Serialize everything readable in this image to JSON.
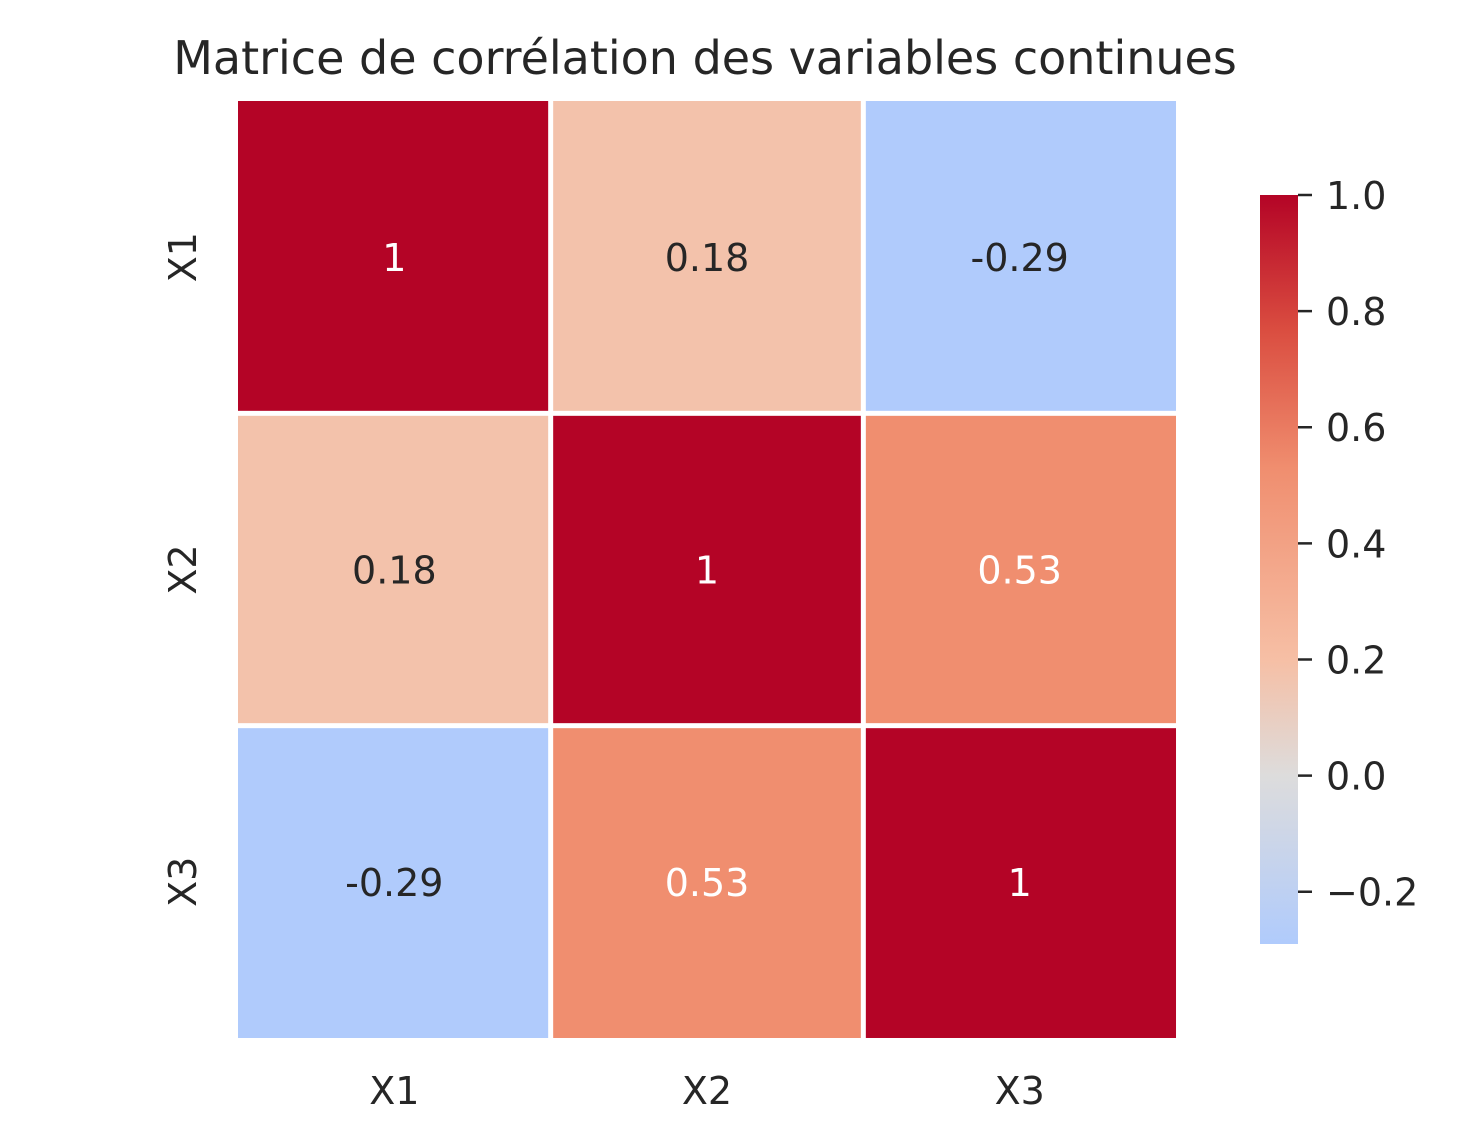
{
  "chart_data": {
    "type": "heatmap",
    "title": "Matrice de corrélation des variables continues",
    "xlabel": "",
    "ylabel": "",
    "x_categories": [
      "X1",
      "X2",
      "X3"
    ],
    "y_categories": [
      "X1",
      "X2",
      "X3"
    ],
    "values": [
      [
        1.0,
        0.18,
        -0.29
      ],
      [
        0.18,
        1.0,
        0.53
      ],
      [
        -0.29,
        0.53,
        1.0
      ]
    ],
    "cell_labels": [
      [
        "1",
        "0.18",
        "-0.29"
      ],
      [
        "0.18",
        "1",
        "0.53"
      ],
      [
        "-0.29",
        "0.53",
        "1"
      ]
    ],
    "colormap": "coolwarm",
    "color_range": [
      -0.29,
      1.0
    ],
    "colorbar": {
      "ticks": [
        1.0,
        0.8,
        0.6,
        0.4,
        0.2,
        0.0,
        -0.2
      ],
      "tick_labels": [
        "1.0",
        "0.8",
        "0.6",
        "0.4",
        "0.2",
        "0.0",
        "−0.2"
      ],
      "placement": "right"
    },
    "cell_text_colors": {
      "dark": "#262626",
      "light": "#ffffff"
    },
    "gridline_color": "#ffffff",
    "grid": false
  }
}
